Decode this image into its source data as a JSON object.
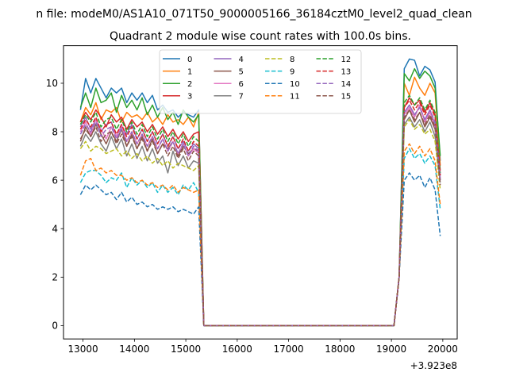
{
  "chart_data": {
    "type": "line",
    "suptitle": "n file: modeM0/AS1A10_071T50_9000005166_36184cztM0_level2_quad_clean",
    "title": "Quadrant 2 module wise count rates with 100.0s bins.",
    "xlabel": "",
    "ylabel": "",
    "x_offset_label": "+3.923e8",
    "xlim": [
      12620,
      20280
    ],
    "ylim": [
      -0.55,
      11.55
    ],
    "xticks": [
      13000,
      14000,
      15000,
      16000,
      17000,
      18000,
      19000,
      20000
    ],
    "yticks": [
      0,
      2,
      4,
      6,
      8,
      10
    ],
    "grid": false,
    "legend": {
      "placement": "upper-center",
      "columns": 4
    },
    "x": [
      12950,
      13050,
      13150,
      13250,
      13350,
      13450,
      13550,
      13650,
      13750,
      13850,
      13950,
      14050,
      14150,
      14250,
      14350,
      14450,
      14550,
      14650,
      14750,
      14850,
      14950,
      15050,
      15150,
      15250,
      15350,
      15450,
      15550,
      15650,
      15750,
      15850,
      15950,
      16050,
      16150,
      16250,
      16350,
      16450,
      16550,
      16650,
      16750,
      16850,
      16950,
      17050,
      17150,
      17250,
      17350,
      17450,
      17550,
      17650,
      17750,
      17850,
      17950,
      18050,
      18150,
      18250,
      18350,
      18450,
      18550,
      18650,
      18750,
      18850,
      18950,
      19050,
      19150,
      19250,
      19350,
      19450,
      19550,
      19650,
      19750,
      19850,
      19950
    ],
    "series": [
      {
        "name": "0",
        "color": "#1f77b4",
        "dash": "solid",
        "values": [
          8.9,
          10.2,
          9.6,
          10.2,
          9.8,
          9.4,
          9.8,
          9.6,
          9.8,
          9.2,
          9.6,
          9.3,
          9.6,
          9.2,
          9.5,
          8.9,
          9.1,
          8.8,
          8.9,
          8.6,
          8.8,
          8.7,
          8.6,
          8.9,
          0,
          0,
          0,
          0,
          0,
          0,
          0,
          0,
          0,
          0,
          0,
          0,
          0,
          0,
          0,
          0,
          0,
          0,
          0,
          0,
          0,
          0,
          0,
          0,
          0,
          0,
          0,
          0,
          0,
          0,
          0,
          0,
          0,
          0,
          0,
          0,
          0,
          0,
          2,
          10.6,
          11.0,
          10.95,
          10.3,
          10.7,
          10.55,
          10.05,
          6.8
        ]
      },
      {
        "name": "1",
        "color": "#ff7f0e",
        "dash": "solid",
        "values": [
          8.4,
          9.0,
          8.7,
          9.2,
          8.5,
          8.9,
          8.8,
          9.0,
          8.4,
          8.8,
          8.6,
          8.7,
          8.5,
          8.8,
          8.4,
          8.6,
          8.3,
          8.7,
          8.4,
          8.5,
          8.3,
          8.6,
          8.2,
          8.8,
          0,
          0,
          0,
          0,
          0,
          0,
          0,
          0,
          0,
          0,
          0,
          0,
          0,
          0,
          0,
          0,
          0,
          0,
          0,
          0,
          0,
          0,
          0,
          0,
          0,
          0,
          0,
          0,
          0,
          0,
          0,
          0,
          0,
          0,
          0,
          0,
          0,
          0,
          2,
          10.0,
          9.5,
          10.25,
          9.8,
          9.5,
          10.0,
          9.6,
          6.6
        ]
      },
      {
        "name": "2",
        "color": "#2ca02c",
        "dash": "solid",
        "values": [
          9.0,
          9.6,
          9.0,
          9.8,
          9.2,
          9.3,
          9.6,
          8.8,
          9.5,
          9.0,
          9.3,
          8.9,
          9.4,
          8.7,
          9.1,
          8.6,
          9.0,
          8.5,
          8.8,
          8.3,
          8.9,
          8.6,
          8.4,
          8.7,
          0,
          0,
          0,
          0,
          0,
          0,
          0,
          0,
          0,
          0,
          0,
          0,
          0,
          0,
          0,
          0,
          0,
          0,
          0,
          0,
          0,
          0,
          0,
          0,
          0,
          0,
          0,
          0,
          0,
          0,
          0,
          0,
          0,
          0,
          0,
          0,
          0,
          0,
          2,
          10.4,
          10.1,
          10.6,
          10.2,
          10.5,
          10.3,
          9.8,
          7.0
        ]
      },
      {
        "name": "3",
        "color": "#d62728",
        "dash": "solid",
        "values": [
          8.4,
          8.8,
          8.5,
          8.9,
          8.6,
          8.2,
          8.7,
          8.4,
          8.6,
          8.1,
          8.5,
          8.2,
          8.4,
          8.0,
          8.3,
          7.9,
          8.2,
          7.8,
          8.1,
          7.7,
          8.0,
          7.6,
          7.9,
          8.0,
          0,
          0,
          0,
          0,
          0,
          0,
          0,
          0,
          0,
          0,
          0,
          0,
          0,
          0,
          0,
          0,
          0,
          0,
          0,
          0,
          0,
          0,
          0,
          0,
          0,
          0,
          0,
          0,
          0,
          0,
          0,
          0,
          0,
          0,
          0,
          0,
          0,
          0,
          2,
          9.0,
          9.4,
          9.1,
          9.3,
          8.8,
          9.2,
          8.7,
          6.4
        ]
      },
      {
        "name": "4",
        "color": "#9467bd",
        "dash": "solid",
        "values": [
          8.2,
          8.6,
          8.1,
          8.5,
          8.0,
          8.3,
          8.4,
          7.8,
          8.2,
          7.9,
          8.3,
          7.7,
          8.1,
          7.6,
          8.0,
          7.5,
          7.9,
          7.4,
          7.8,
          7.3,
          7.6,
          7.2,
          7.5,
          7.3,
          0,
          0,
          0,
          0,
          0,
          0,
          0,
          0,
          0,
          0,
          0,
          0,
          0,
          0,
          0,
          0,
          0,
          0,
          0,
          0,
          0,
          0,
          0,
          0,
          0,
          0,
          0,
          0,
          0,
          0,
          0,
          0,
          0,
          0,
          0,
          0,
          0,
          0,
          2,
          8.8,
          9.1,
          8.7,
          9.0,
          8.5,
          8.9,
          8.3,
          6.2
        ]
      },
      {
        "name": "5",
        "color": "#8c564b",
        "dash": "solid",
        "values": [
          7.6,
          8.2,
          7.8,
          8.3,
          7.9,
          7.5,
          8.0,
          7.6,
          8.1,
          7.4,
          7.9,
          7.3,
          7.8,
          7.2,
          7.7,
          7.1,
          7.5,
          7.3,
          7.6,
          7.0,
          7.4,
          7.1,
          7.3,
          7.2,
          0,
          0,
          0,
          0,
          0,
          0,
          0,
          0,
          0,
          0,
          0,
          0,
          0,
          0,
          0,
          0,
          0,
          0,
          0,
          0,
          0,
          0,
          0,
          0,
          0,
          0,
          0,
          0,
          0,
          0,
          0,
          0,
          0,
          0,
          0,
          0,
          0,
          0,
          2,
          8.5,
          8.9,
          8.4,
          8.8,
          8.2,
          8.6,
          8.1,
          6.0
        ]
      },
      {
        "name": "6",
        "color": "#e377c2",
        "dash": "solid",
        "values": [
          8.0,
          8.4,
          7.9,
          8.5,
          8.1,
          7.7,
          8.2,
          7.8,
          8.3,
          7.6,
          8.0,
          7.5,
          7.9,
          7.4,
          7.8,
          7.3,
          7.7,
          7.2,
          7.6,
          7.1,
          7.5,
          7.0,
          7.3,
          7.1,
          0,
          0,
          0,
          0,
          0,
          0,
          0,
          0,
          0,
          0,
          0,
          0,
          0,
          0,
          0,
          0,
          0,
          0,
          0,
          0,
          0,
          0,
          0,
          0,
          0,
          0,
          0,
          0,
          0,
          0,
          0,
          0,
          0,
          0,
          0,
          0,
          0,
          0,
          2,
          8.7,
          9.0,
          8.6,
          9.1,
          8.4,
          8.8,
          8.2,
          6.1
        ]
      },
      {
        "name": "7",
        "color": "#7f7f7f",
        "dash": "solid",
        "values": [
          7.4,
          7.9,
          7.6,
          8.0,
          7.5,
          7.2,
          7.8,
          7.3,
          7.7,
          7.0,
          7.5,
          6.9,
          7.4,
          6.8,
          7.3,
          6.7,
          7.0,
          6.3,
          7.2,
          6.6,
          7.0,
          6.5,
          6.8,
          6.7,
          0,
          0,
          0,
          0,
          0,
          0,
          0,
          0,
          0,
          0,
          0,
          0,
          0,
          0,
          0,
          0,
          0,
          0,
          0,
          0,
          0,
          0,
          0,
          0,
          0,
          0,
          0,
          0,
          0,
          0,
          0,
          0,
          0,
          0,
          0,
          0,
          0,
          0,
          2,
          8.3,
          8.6,
          8.2,
          8.5,
          8.0,
          8.4,
          7.8,
          5.9
        ]
      },
      {
        "name": "8",
        "color": "#bcbd22",
        "dash": "dashed",
        "values": [
          7.3,
          7.6,
          7.2,
          7.4,
          7.3,
          7.1,
          7.2,
          7.3,
          7.0,
          7.2,
          6.9,
          7.1,
          6.8,
          7.0,
          6.7,
          6.9,
          6.6,
          6.8,
          6.5,
          6.7,
          6.6,
          6.5,
          6.4,
          6.6,
          0,
          0,
          0,
          0,
          0,
          0,
          0,
          0,
          0,
          0,
          0,
          0,
          0,
          0,
          0,
          0,
          0,
          0,
          0,
          0,
          0,
          0,
          0,
          0,
          0,
          0,
          0,
          0,
          0,
          0,
          0,
          0,
          0,
          0,
          0,
          0,
          0,
          0,
          2,
          8.2,
          8.5,
          8.1,
          8.3,
          7.9,
          8.1,
          7.6,
          5.6
        ]
      },
      {
        "name": "9",
        "color": "#17becf",
        "dash": "dashed",
        "values": [
          5.9,
          6.3,
          6.4,
          6.4,
          6.2,
          5.9,
          6.1,
          6.0,
          6.3,
          5.7,
          6.1,
          5.8,
          6.0,
          5.7,
          5.9,
          5.5,
          5.8,
          5.5,
          5.7,
          5.4,
          5.8,
          5.6,
          5.9,
          5.5,
          0,
          0,
          0,
          0,
          0,
          0,
          0,
          0,
          0,
          0,
          0,
          0,
          0,
          0,
          0,
          0,
          0,
          0,
          0,
          0,
          0,
          0,
          0,
          0,
          0,
          0,
          0,
          0,
          0,
          0,
          0,
          0,
          0,
          0,
          0,
          0,
          0,
          0,
          2,
          6.9,
          7.3,
          6.9,
          7.1,
          6.7,
          7.0,
          6.6,
          4.8
        ]
      },
      {
        "name": "10",
        "color": "#1f77b4",
        "dash": "dashed",
        "values": [
          5.4,
          5.8,
          5.6,
          5.8,
          5.6,
          5.4,
          5.5,
          5.2,
          5.5,
          5.1,
          5.3,
          5.0,
          5.1,
          4.9,
          5.0,
          4.8,
          4.9,
          4.8,
          4.9,
          4.7,
          4.8,
          4.7,
          4.6,
          4.9,
          0,
          0,
          0,
          0,
          0,
          0,
          0,
          0,
          0,
          0,
          0,
          0,
          0,
          0,
          0,
          0,
          0,
          0,
          0,
          0,
          0,
          0,
          0,
          0,
          0,
          0,
          0,
          0,
          0,
          0,
          0,
          0,
          0,
          0,
          0,
          0,
          0,
          0,
          2,
          6.0,
          6.3,
          6.0,
          6.2,
          5.7,
          6.1,
          5.6,
          3.7
        ]
      },
      {
        "name": "11",
        "color": "#ff7f0e",
        "dash": "dashed",
        "values": [
          6.2,
          6.8,
          6.9,
          6.4,
          6.5,
          6.3,
          6.4,
          6.2,
          6.2,
          6.0,
          6.1,
          5.9,
          6.0,
          5.8,
          5.9,
          5.7,
          5.8,
          5.6,
          5.8,
          5.5,
          5.7,
          5.6,
          5.5,
          5.6,
          0,
          0,
          0,
          0,
          0,
          0,
          0,
          0,
          0,
          0,
          0,
          0,
          0,
          0,
          0,
          0,
          0,
          0,
          0,
          0,
          0,
          0,
          0,
          0,
          0,
          0,
          0,
          0,
          0,
          0,
          0,
          0,
          0,
          0,
          0,
          0,
          0,
          0,
          2,
          7.2,
          7.5,
          7.1,
          7.4,
          7.0,
          7.3,
          6.8,
          5.0
        ]
      },
      {
        "name": "12",
        "color": "#2ca02c",
        "dash": "dashed",
        "values": [
          8.3,
          8.7,
          8.4,
          8.8,
          8.2,
          8.5,
          8.6,
          8.1,
          8.5,
          8.0,
          8.4,
          7.9,
          8.3,
          7.8,
          8.2,
          7.7,
          8.1,
          7.6,
          8.0,
          7.5,
          7.9,
          7.4,
          7.8,
          7.6,
          0,
          0,
          0,
          0,
          0,
          0,
          0,
          0,
          0,
          0,
          0,
          0,
          0,
          0,
          0,
          0,
          0,
          0,
          0,
          0,
          0,
          0,
          0,
          0,
          0,
          0,
          0,
          0,
          0,
          0,
          0,
          0,
          0,
          0,
          0,
          0,
          0,
          0,
          2,
          9.2,
          9.5,
          9.1,
          9.4,
          8.9,
          9.3,
          8.8,
          6.3
        ]
      },
      {
        "name": "13",
        "color": "#d62728",
        "dash": "dashed",
        "values": [
          8.1,
          8.5,
          8.2,
          8.6,
          8.0,
          8.3,
          8.4,
          7.9,
          8.3,
          7.8,
          8.2,
          7.7,
          8.1,
          7.6,
          8.0,
          7.5,
          7.9,
          7.4,
          7.8,
          7.3,
          7.7,
          7.2,
          7.6,
          7.4,
          0,
          0,
          0,
          0,
          0,
          0,
          0,
          0,
          0,
          0,
          0,
          0,
          0,
          0,
          0,
          0,
          0,
          0,
          0,
          0,
          0,
          0,
          0,
          0,
          0,
          0,
          0,
          0,
          0,
          0,
          0,
          0,
          0,
          0,
          0,
          0,
          0,
          0,
          2,
          9.0,
          9.3,
          8.9,
          9.2,
          8.7,
          9.1,
          8.6,
          6.2
        ]
      },
      {
        "name": "14",
        "color": "#9467bd",
        "dash": "dashed",
        "values": [
          7.9,
          8.3,
          8.0,
          8.4,
          7.8,
          8.1,
          8.2,
          7.7,
          8.1,
          7.6,
          8.0,
          7.5,
          7.9,
          7.4,
          7.8,
          7.3,
          7.7,
          7.2,
          7.6,
          7.1,
          7.5,
          7.0,
          7.4,
          7.2,
          0,
          0,
          0,
          0,
          0,
          0,
          0,
          0,
          0,
          0,
          0,
          0,
          0,
          0,
          0,
          0,
          0,
          0,
          0,
          0,
          0,
          0,
          0,
          0,
          0,
          0,
          0,
          0,
          0,
          0,
          0,
          0,
          0,
          0,
          0,
          0,
          0,
          0,
          2,
          8.8,
          9.1,
          8.7,
          9.0,
          8.5,
          8.9,
          8.4,
          6.0
        ]
      },
      {
        "name": "15",
        "color": "#8c564b",
        "dash": "dashed",
        "values": [
          7.7,
          8.1,
          7.8,
          8.2,
          7.6,
          7.9,
          8.0,
          7.5,
          7.9,
          7.4,
          7.8,
          7.3,
          7.7,
          7.2,
          7.6,
          7.1,
          7.5,
          7.0,
          7.4,
          6.9,
          7.3,
          6.8,
          7.2,
          7.0,
          0,
          0,
          0,
          0,
          0,
          0,
          0,
          0,
          0,
          0,
          0,
          0,
          0,
          0,
          0,
          0,
          0,
          0,
          0,
          0,
          0,
          0,
          0,
          0,
          0,
          0,
          0,
          0,
          0,
          0,
          0,
          0,
          0,
          0,
          0,
          0,
          0,
          0,
          2,
          8.6,
          8.9,
          8.5,
          8.8,
          8.3,
          8.7,
          8.2,
          5.8
        ]
      }
    ]
  }
}
